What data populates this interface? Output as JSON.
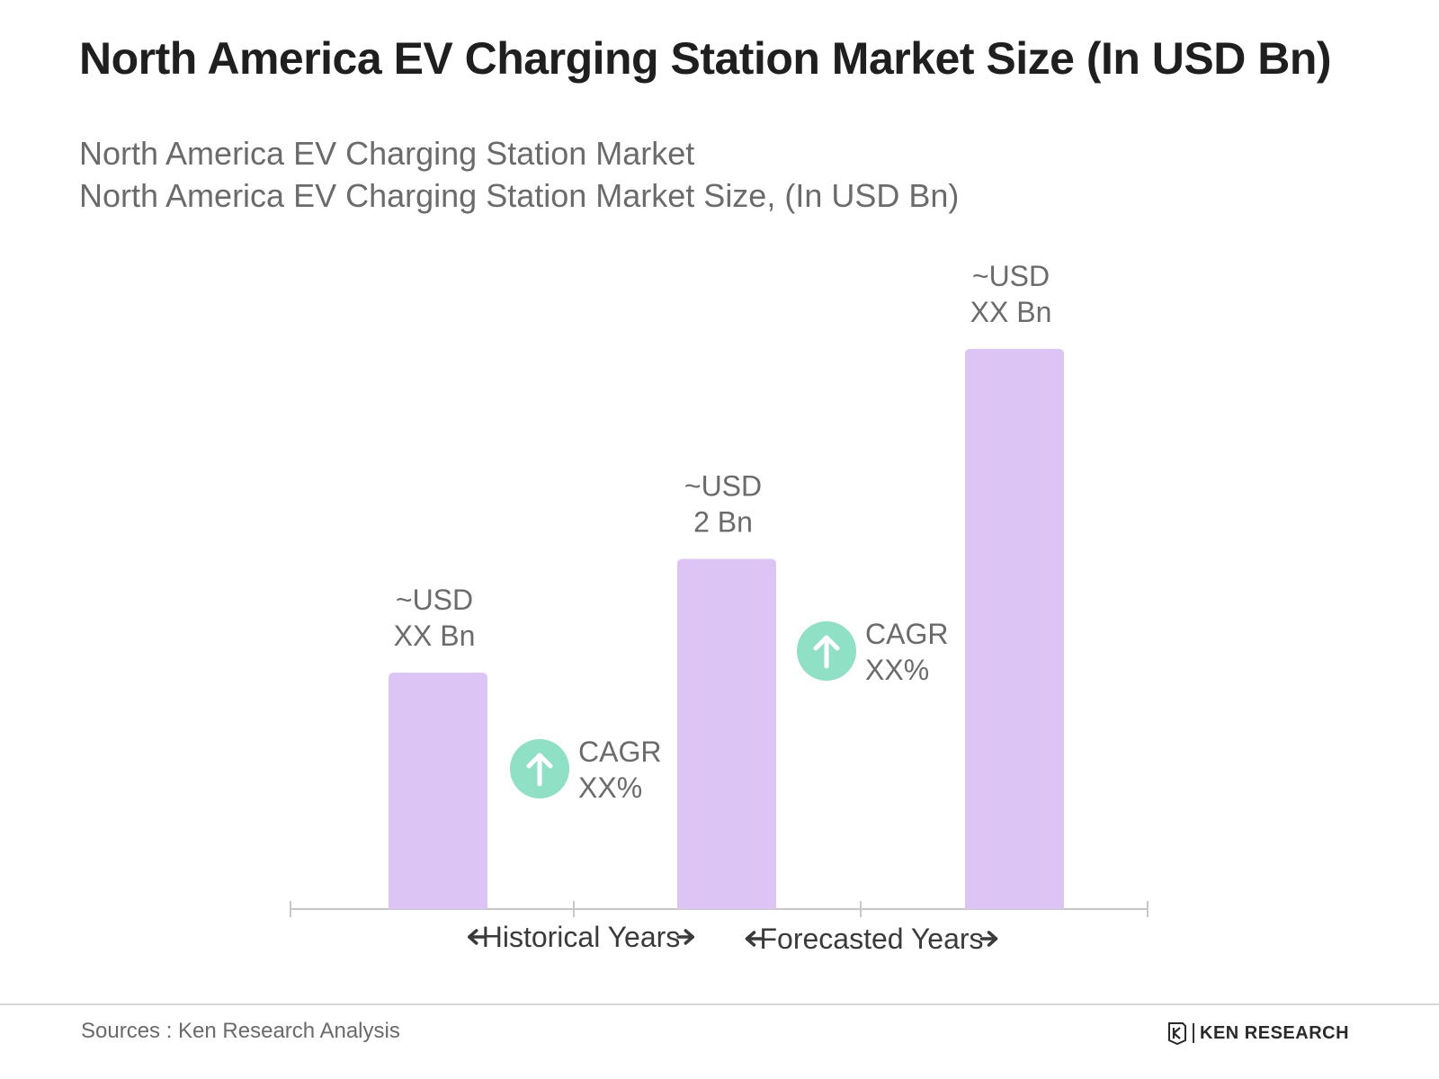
{
  "header": {
    "title": "North America EV Charging Station Market Size (In USD Bn)",
    "subtitle_line1": "North America EV Charging Station Market",
    "subtitle_line2": "North America EV Charging Station Market Size, (In USD Bn)"
  },
  "chart_data": {
    "type": "bar",
    "categories": [
      "",
      "",
      ""
    ],
    "values": [
      1.35,
      2.0,
      3.2
    ],
    "bar_labels": [
      [
        "~USD",
        "XX Bn"
      ],
      [
        "~USD",
        "2 Bn"
      ],
      [
        "~USD",
        "XX Bn"
      ]
    ],
    "growth_annotations": [
      {
        "between": [
          0,
          1
        ],
        "lines": [
          "CAGR",
          "XX%"
        ]
      },
      {
        "between": [
          1,
          2
        ],
        "lines": [
          "CAGR",
          "XX%"
        ]
      }
    ],
    "period_labels": [
      {
        "text": "Historical Years"
      },
      {
        "text": "Forecasted Years"
      }
    ],
    "ylim": [
      0,
      3.2
    ],
    "grid": false,
    "colors": {
      "bar": "#dcc4f5",
      "icon": "#8fe0c4",
      "axis": "#c8c8c8",
      "label": "#6b6b6b",
      "period": "#3a3a3a"
    }
  },
  "footer": {
    "source": "Sources : Ken Research Analysis",
    "logo_text": "KEN RESEARCH",
    "logo_icon": "ken-research-logo-icon"
  }
}
